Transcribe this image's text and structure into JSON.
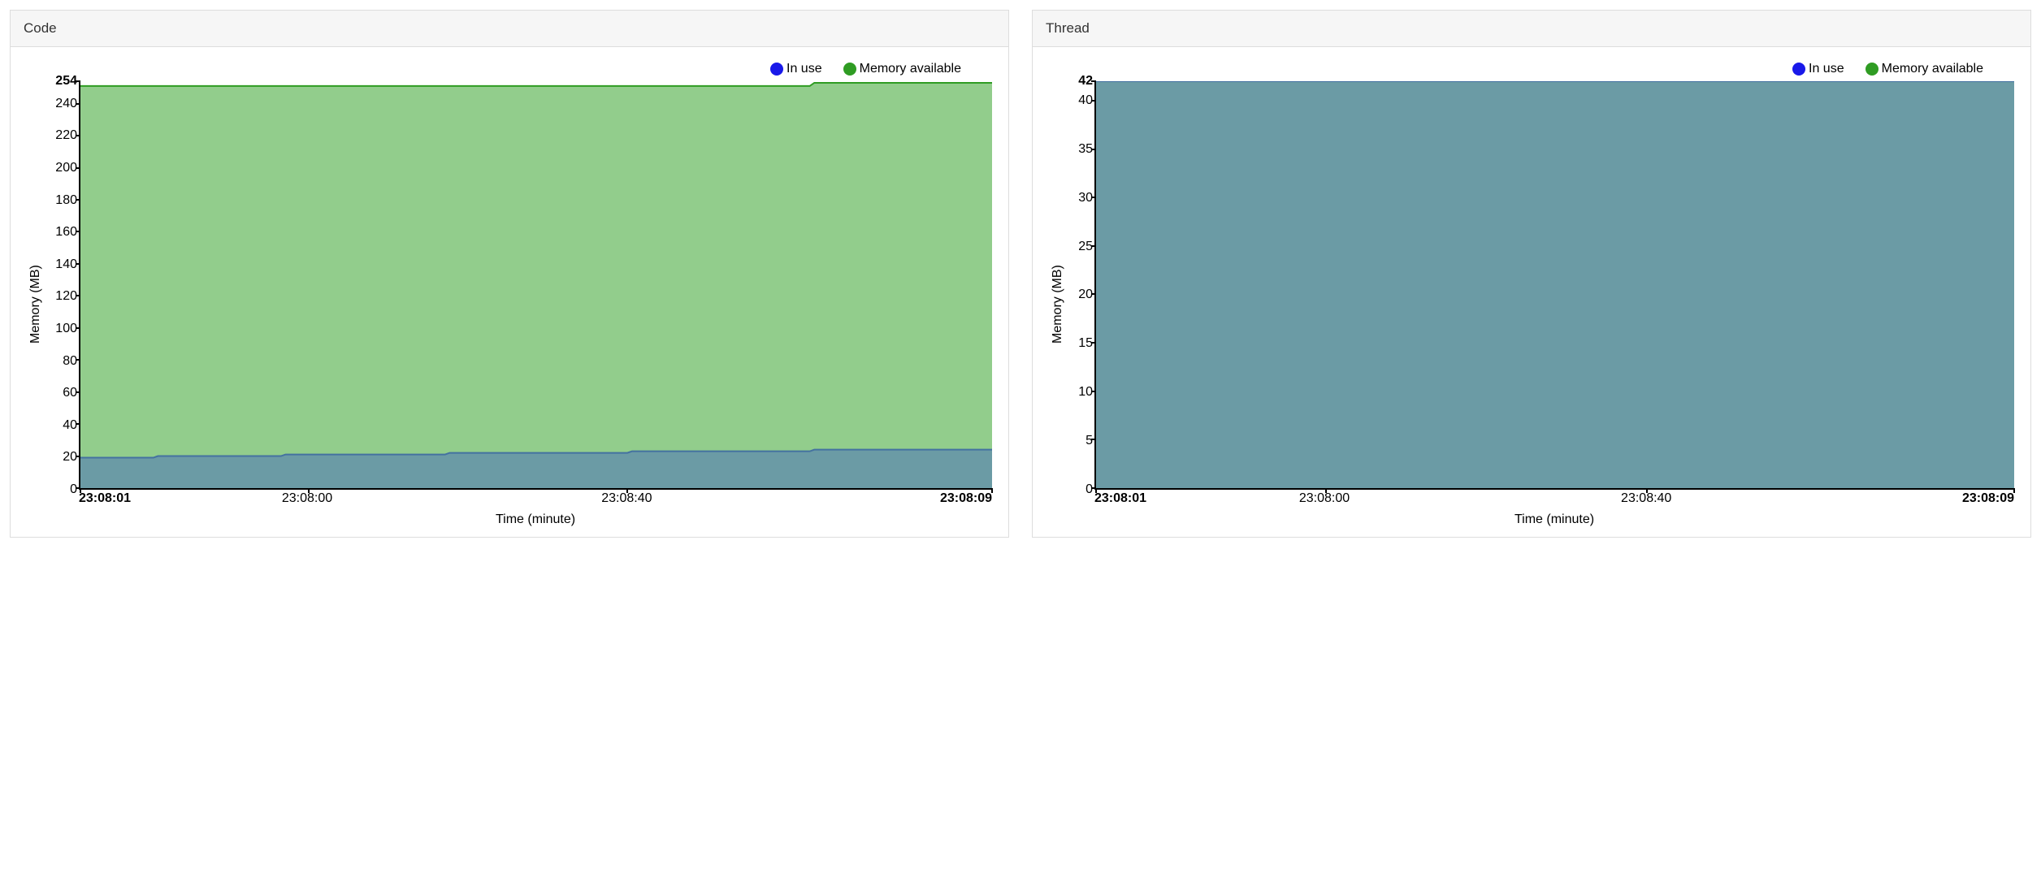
{
  "panels": [
    {
      "id": "code",
      "title": "Code",
      "chart": {
        "type": "area",
        "ylabel": "Memory (MB)",
        "xlabel": "Time (minute)",
        "label_fontsize": 16,
        "ylim": [
          0,
          254
        ],
        "yticks": [
          {
            "v": 254,
            "label": "254",
            "bold": true
          },
          {
            "v": 240,
            "label": "240",
            "bold": false
          },
          {
            "v": 220,
            "label": "220",
            "bold": false
          },
          {
            "v": 200,
            "label": "200",
            "bold": false
          },
          {
            "v": 180,
            "label": "180",
            "bold": false
          },
          {
            "v": 160,
            "label": "160",
            "bold": false
          },
          {
            "v": 140,
            "label": "140",
            "bold": false
          },
          {
            "v": 120,
            "label": "120",
            "bold": false
          },
          {
            "v": 100,
            "label": "100",
            "bold": false
          },
          {
            "v": 80,
            "label": "80",
            "bold": false
          },
          {
            "v": 60,
            "label": "60",
            "bold": false
          },
          {
            "v": 40,
            "label": "40",
            "bold": false
          },
          {
            "v": 20,
            "label": "20",
            "bold": false
          },
          {
            "v": 0,
            "label": "0",
            "bold": false
          }
        ],
        "xticks": [
          {
            "x": 0.0,
            "label": "23:08:01",
            "bold": true
          },
          {
            "x": 0.25,
            "label": "23:08:00",
            "bold": false
          },
          {
            "x": 0.6,
            "label": "23:08:40",
            "bold": false
          },
          {
            "x": 1.0,
            "label": "23:08:09",
            "bold": true
          }
        ],
        "legend": [
          {
            "label": "In use",
            "color": "#1919e9"
          },
          {
            "label": "Memory available",
            "color": "#2f9c23"
          }
        ],
        "series": {
          "in_use": {
            "color_line": "#4472a0",
            "color_fill": "#6b9ba5",
            "fill_opacity": 1.0,
            "line_width": 2,
            "points": [
              {
                "x": 0.0,
                "y": 19
              },
              {
                "x": 0.08,
                "y": 19
              },
              {
                "x": 0.085,
                "y": 20
              },
              {
                "x": 0.22,
                "y": 20
              },
              {
                "x": 0.225,
                "y": 21
              },
              {
                "x": 0.4,
                "y": 21
              },
              {
                "x": 0.405,
                "y": 22
              },
              {
                "x": 0.6,
                "y": 22
              },
              {
                "x": 0.605,
                "y": 23
              },
              {
                "x": 0.8,
                "y": 23
              },
              {
                "x": 0.805,
                "y": 24
              },
              {
                "x": 1.0,
                "y": 24
              }
            ]
          },
          "memory_available": {
            "color_line": "#2f9c23",
            "color_fill": "#92cd8c",
            "fill_opacity": 1.0,
            "line_width": 2,
            "points": [
              {
                "x": 0.0,
                "y": 251
              },
              {
                "x": 0.8,
                "y": 251
              },
              {
                "x": 0.805,
                "y": 253
              },
              {
                "x": 1.0,
                "y": 253
              }
            ]
          }
        },
        "background_color": "#ffffff"
      }
    },
    {
      "id": "thread",
      "title": "Thread",
      "chart": {
        "type": "area",
        "ylabel": "Memory (MB)",
        "xlabel": "Time (minute)",
        "label_fontsize": 16,
        "ylim": [
          0,
          42
        ],
        "yticks": [
          {
            "v": 42,
            "label": "42",
            "bold": true
          },
          {
            "v": 40,
            "label": "40",
            "bold": false
          },
          {
            "v": 35,
            "label": "35",
            "bold": false
          },
          {
            "v": 30,
            "label": "30",
            "bold": false
          },
          {
            "v": 25,
            "label": "25",
            "bold": false
          },
          {
            "v": 20,
            "label": "20",
            "bold": false
          },
          {
            "v": 15,
            "label": "15",
            "bold": false
          },
          {
            "v": 10,
            "label": "10",
            "bold": false
          },
          {
            "v": 5,
            "label": "5",
            "bold": false
          },
          {
            "v": 0,
            "label": "0",
            "bold": false
          }
        ],
        "xticks": [
          {
            "x": 0.0,
            "label": "23:08:01",
            "bold": true
          },
          {
            "x": 0.25,
            "label": "23:08:00",
            "bold": false
          },
          {
            "x": 0.6,
            "label": "23:08:40",
            "bold": false
          },
          {
            "x": 1.0,
            "label": "23:08:09",
            "bold": true
          }
        ],
        "legend": [
          {
            "label": "In use",
            "color": "#1919e9"
          },
          {
            "label": "Memory available",
            "color": "#2f9c23"
          }
        ],
        "series": {
          "in_use": {
            "color_line": "#4472a0",
            "color_fill": "#6b9ba5",
            "fill_opacity": 1.0,
            "line_width": 2,
            "points": [
              {
                "x": 0.0,
                "y": 42
              },
              {
                "x": 1.0,
                "y": 42
              }
            ]
          },
          "memory_available": {
            "color_line": "#2f9c23",
            "color_fill": "#92cd8c",
            "fill_opacity": 1.0,
            "line_width": 2,
            "points": [
              {
                "x": 0.0,
                "y": 42
              },
              {
                "x": 1.0,
                "y": 42
              }
            ]
          }
        },
        "background_color": "#ffffff"
      }
    }
  ],
  "panel_header_bg": "#f6f6f6",
  "panel_border": "#dddddd"
}
